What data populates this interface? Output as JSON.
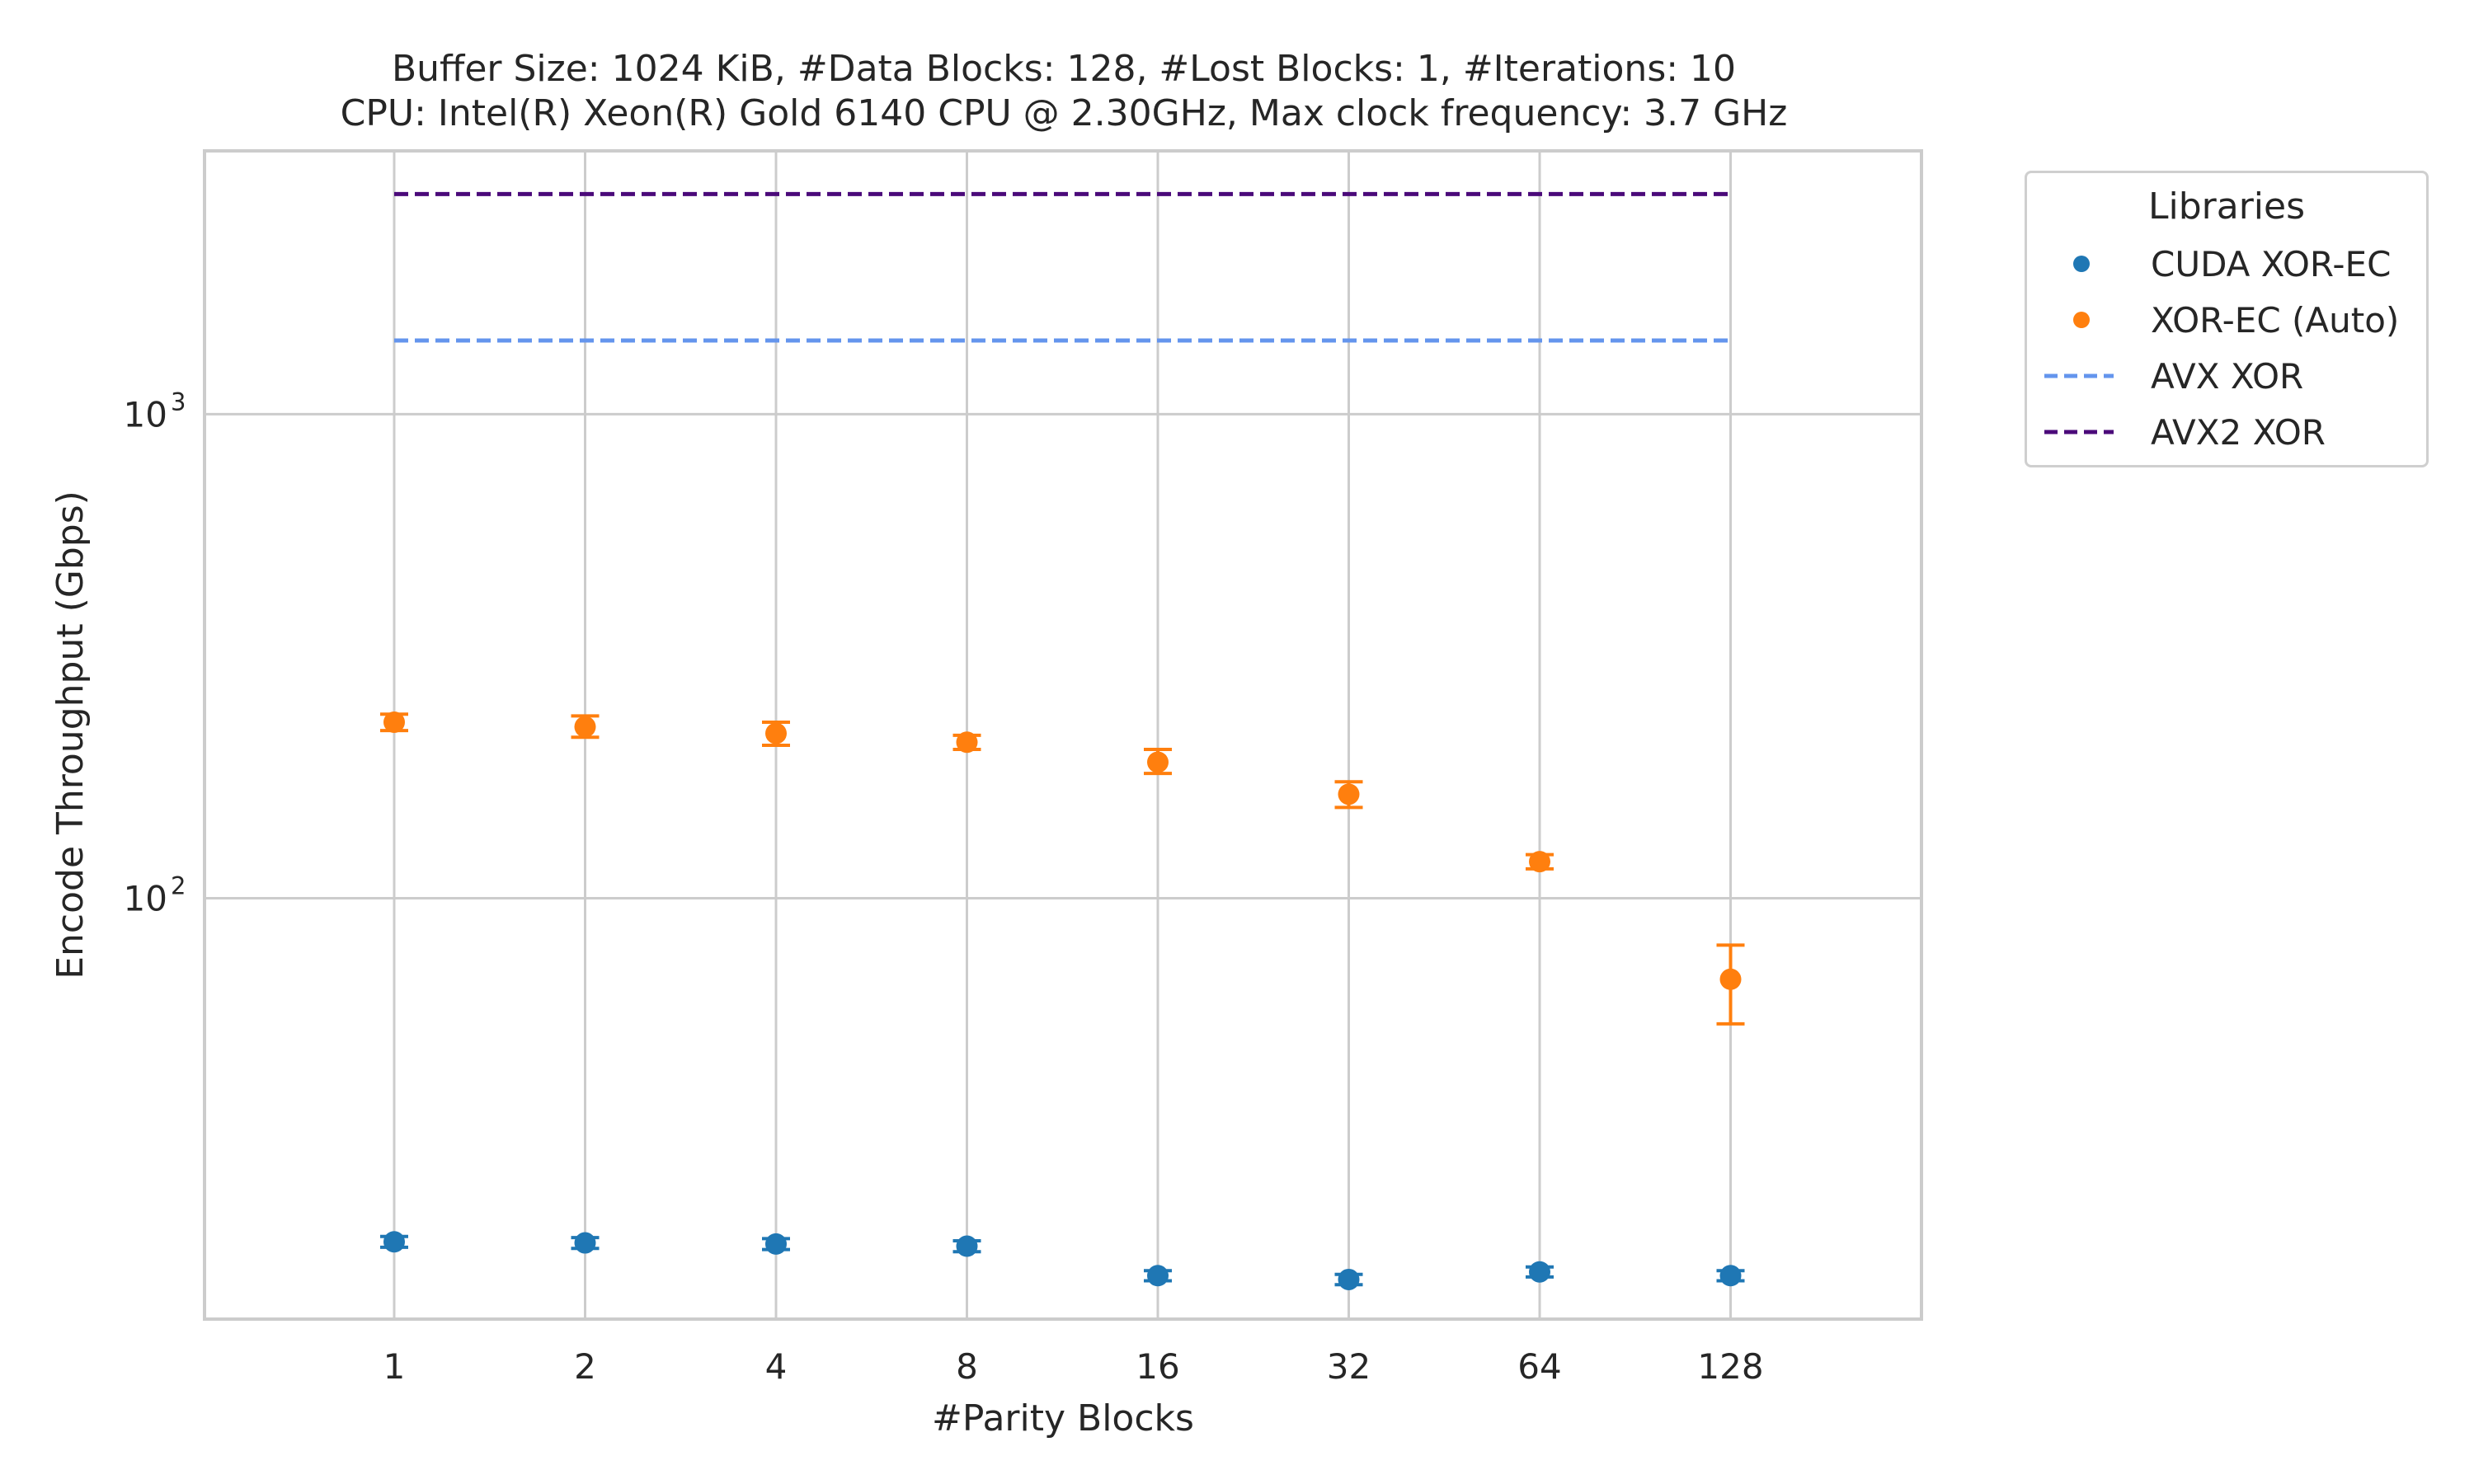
{
  "chart_data": {
    "type": "scatter",
    "title": "Buffer Size: 1024 KiB, #Data Blocks: 128, #Lost Blocks: 1, #Iterations: 10",
    "subtitle": "CPU: Intel(R) Xeon(R) Gold 6140 CPU @ 2.30GHz, Max clock frequency: 3.7 GHz",
    "xlabel": "#Parity Blocks",
    "ylabel": "Encode Throughput (Gbps)",
    "yscale": "log",
    "ylim": [
      13.5,
      3500
    ],
    "ytick_labels": [
      {
        "base": "10",
        "exp": "3",
        "value": 1000
      },
      {
        "base": "10",
        "exp": "2",
        "value": 100
      }
    ],
    "categories": [
      "1",
      "2",
      "4",
      "8",
      "16",
      "32",
      "64",
      "128"
    ],
    "grid": true,
    "legend": {
      "title": "Libraries",
      "placement": "outside-top-right"
    },
    "series": [
      {
        "name": "CUDA XOR-EC",
        "kind": "points",
        "color": "#1f77b4",
        "values": [
          19.5,
          19.4,
          19.3,
          19.1,
          16.6,
          16.3,
          16.9,
          16.6
        ],
        "err_low": [
          19.0,
          18.9,
          18.8,
          18.6,
          16.2,
          15.9,
          16.5,
          16.2
        ],
        "err_high": [
          20.0,
          19.9,
          19.8,
          19.6,
          17.0,
          16.7,
          17.3,
          17.0
        ]
      },
      {
        "name": "XOR-EC (Auto)",
        "kind": "points",
        "color": "#ff7f0e",
        "values": [
          231,
          226,
          219,
          210,
          191,
          164,
          119,
          68
        ],
        "err_low": [
          222,
          215,
          207,
          203,
          181,
          154,
          115,
          55
        ],
        "err_high": [
          240,
          238,
          231,
          217,
          203,
          174,
          123,
          80
        ]
      },
      {
        "name": "AVX XOR",
        "kind": "hline",
        "color": "#6495ed",
        "value": 1420
      },
      {
        "name": "AVX2 XOR",
        "kind": "hline",
        "color": "#4b0a7a",
        "value": 2850
      }
    ]
  }
}
